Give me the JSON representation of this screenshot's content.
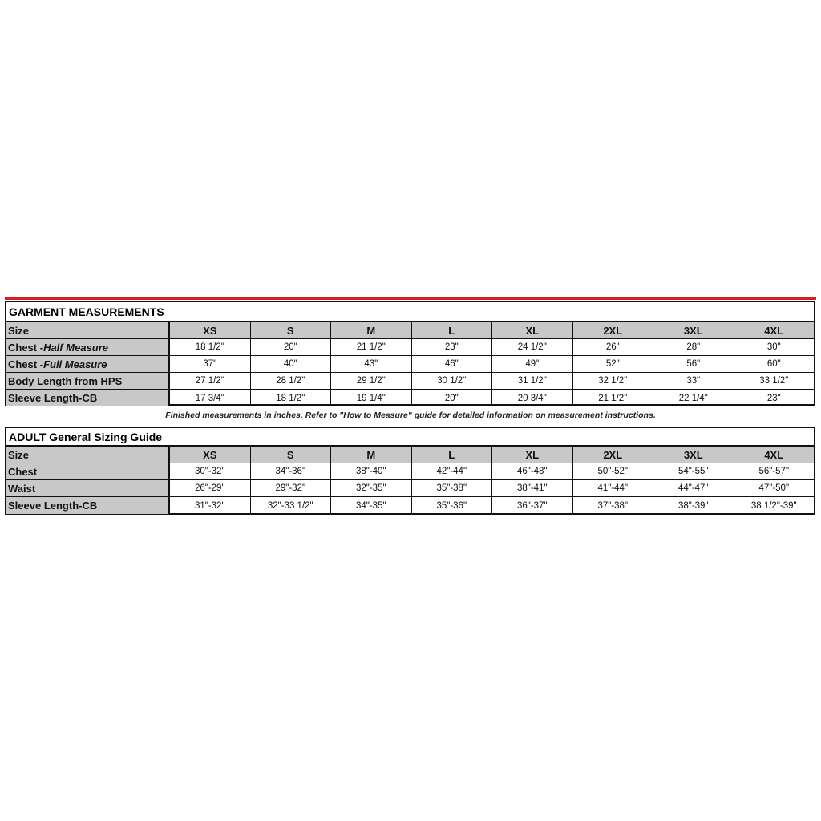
{
  "accent_color": "#d41f1f",
  "garment": {
    "title": "GARMENT MEASUREMENTS",
    "size_label": "Size",
    "sizes": [
      "XS",
      "S",
      "M",
      "L",
      "XL",
      "2XL",
      "3XL",
      "4XL"
    ],
    "rows": [
      {
        "label": "Chest - ",
        "label_italic": "Half Measure",
        "values": [
          "18 1/2\"",
          "20\"",
          "21 1/2\"",
          "23\"",
          "24 1/2\"",
          "26\"",
          "28\"",
          "30\""
        ]
      },
      {
        "label": "Chest - ",
        "label_italic": "Full Measure",
        "values": [
          "37\"",
          "40\"",
          "43\"",
          "46\"",
          "49\"",
          "52\"",
          "56\"",
          "60\""
        ]
      },
      {
        "label": "Body Length from HPS",
        "label_italic": "",
        "values": [
          "27 1/2\"",
          "28 1/2\"",
          "29 1/2\"",
          "30 1/2\"",
          "31 1/2\"",
          "32 1/2\"",
          "33\"",
          "33 1/2\""
        ]
      },
      {
        "label": "Sleeve Length-CB",
        "label_italic": "",
        "values": [
          "17 3/4\"",
          "18 1/2\"",
          "19 1/4\"",
          "20\"",
          "20 3/4\"",
          "21 1/2\"",
          "22 1/4\"",
          "23\""
        ]
      }
    ]
  },
  "note": "Finished measurements in inches. Refer to \"How to Measure\" guide for detailed information on measurement instructions.",
  "adult": {
    "title": "ADULT General Sizing Guide",
    "size_label": "Size",
    "sizes": [
      "XS",
      "S",
      "M",
      "L",
      "XL",
      "2XL",
      "3XL",
      "4XL"
    ],
    "rows": [
      {
        "label": "Chest",
        "values": [
          "30\"-32\"",
          "34\"-36\"",
          "38\"-40\"",
          "42\"-44\"",
          "46\"-48\"",
          "50\"-52\"",
          "54\"-55\"",
          "56\"-57\""
        ]
      },
      {
        "label": "Waist",
        "values": [
          "26\"-29\"",
          "29\"-32\"",
          "32\"-35\"",
          "35\"-38\"",
          "38\"-41\"",
          "41\"-44\"",
          "44\"-47\"",
          "47\"-50\""
        ]
      },
      {
        "label": "Sleeve Length-CB",
        "values": [
          "31\"-32\"",
          "32\"-33 1/2\"",
          "34\"-35\"",
          "35\"-36\"",
          "36\"-37\"",
          "37\"-38\"",
          "38\"-39\"",
          "38 1/2\"-39\""
        ]
      }
    ]
  }
}
